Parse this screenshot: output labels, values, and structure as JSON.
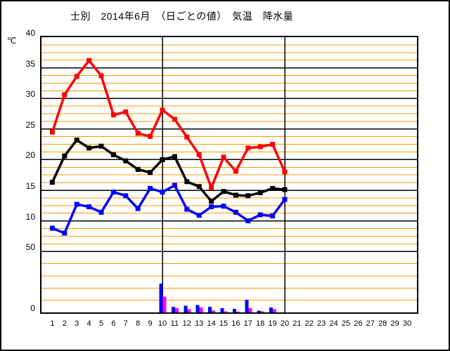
{
  "title": "士別　2014年6月　（日ごとの値）　気温　降水量",
  "y_axis": {
    "unit_label": "℃",
    "tick_labels": [
      "40",
      "35",
      "30",
      "25",
      "20",
      "15",
      "10",
      "50",
      "0"
    ]
  },
  "x_axis": {
    "tick_labels": [
      "1",
      "2",
      "3",
      "4",
      "5",
      "6",
      "7",
      "8",
      "9",
      "10",
      "11",
      "12",
      "13",
      "14",
      "15",
      "16",
      "17",
      "18",
      "19",
      "20",
      "21",
      "22",
      "23",
      "24",
      "25",
      "26",
      "27",
      "28",
      "29",
      "30"
    ]
  },
  "chart_data": {
    "type": "line+bar",
    "title": "士別　2014年6月　（日ごとの値）　気温　降水量",
    "station": "士別",
    "period": "2014年6月",
    "value_kind": "日ごとの値",
    "measures": [
      "気温",
      "降水量"
    ],
    "x_days": [
      1,
      2,
      3,
      4,
      5,
      6,
      7,
      8,
      9,
      10,
      11,
      12,
      13,
      14,
      15,
      16,
      17,
      18,
      19,
      20
    ],
    "x_range": [
      1,
      30
    ],
    "temp_axis": {
      "min": 0,
      "max": 40,
      "major_step": 5,
      "minor_divisions_per_major": 4
    },
    "precip_axis": {
      "label_50_at_line": "50",
      "minor_step_mm": 10
    },
    "grid": {
      "minor_color": "#FF9900",
      "major_color": "#000000",
      "vertical_lines_at_days": [
        10,
        20
      ]
    },
    "series": [
      {
        "name": "max-temp-line",
        "color": "#FF0000",
        "marker": "square",
        "values": [
          24.5,
          30.6,
          33.6,
          36.2,
          33.7,
          27.3,
          27.8,
          24.3,
          23.8,
          28.1,
          26.6,
          23.7,
          20.8,
          15.4,
          20.4,
          18.1,
          21.9,
          22.1,
          22.5,
          18.0
        ]
      },
      {
        "name": "mean-temp-line",
        "color": "#000000",
        "marker": "square",
        "values": [
          16.3,
          20.6,
          23.2,
          21.9,
          22.2,
          20.8,
          19.8,
          18.4,
          17.9,
          20.0,
          20.5,
          16.4,
          15.6,
          13.2,
          14.8,
          14.2,
          14.1,
          14.6,
          15.3,
          15.1
        ]
      },
      {
        "name": "min-temp-line",
        "color": "#0000FF",
        "marker": "square",
        "values": [
          8.8,
          8.0,
          12.7,
          12.3,
          11.4,
          14.7,
          14.1,
          12.0,
          15.3,
          14.7,
          15.8,
          11.9,
          10.9,
          12.3,
          12.4,
          11.4,
          10.0,
          11.0,
          10.8,
          13.5
        ]
      }
    ],
    "bars": [
      {
        "name": "precip-bar-blue",
        "color": "#0000FF",
        "values": [
          0,
          0,
          0,
          0,
          0,
          0,
          0,
          0,
          0,
          23.5,
          4.5,
          5.5,
          6.0,
          4.5,
          3.5,
          3.0,
          10.5,
          1.5,
          4.0,
          0
        ]
      },
      {
        "name": "precip-bar-magenta",
        "color": "#FF00FF",
        "values": [
          0,
          0,
          0,
          0,
          0,
          0,
          0,
          0,
          0,
          13.0,
          3.5,
          2.5,
          4.0,
          1.5,
          1.0,
          0.5,
          3.5,
          1.0,
          2.5,
          0
        ]
      }
    ]
  }
}
